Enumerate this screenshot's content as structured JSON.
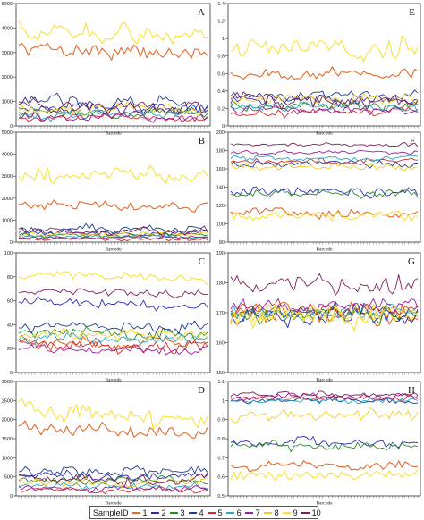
{
  "chart_data": [
    {
      "type": "line",
      "panel_label": "A",
      "xlabel": "Barcode",
      "ylim": [
        0,
        5000
      ],
      "yticks": [
        0,
        1000,
        2000,
        3000,
        4000,
        5000
      ],
      "series": [
        {
          "name": "1",
          "mean": 2900,
          "amp": 400
        },
        {
          "name": "2",
          "mean": 700,
          "amp": 300
        },
        {
          "name": "3",
          "mean": 550,
          "amp": 250
        },
        {
          "name": "4",
          "mean": 900,
          "amp": 400
        },
        {
          "name": "5",
          "mean": 350,
          "amp": 200
        },
        {
          "name": "6",
          "mean": 500,
          "amp": 250
        },
        {
          "name": "7",
          "mean": 400,
          "amp": 250
        },
        {
          "name": "8",
          "mean": 700,
          "amp": 300
        },
        {
          "name": "9",
          "mean": 3600,
          "amp": 500
        },
        {
          "name": "10",
          "mean": 800,
          "amp": 350
        }
      ]
    },
    {
      "type": "line",
      "panel_label": "E",
      "xlabel": "Barcode",
      "ylim": [
        0,
        1.4
      ],
      "yticks": [
        0,
        0.2,
        0.4,
        0.6,
        0.8,
        1.0,
        1.2,
        1.4
      ],
      "series": [
        {
          "name": "1",
          "mean": 0.6,
          "amp": 0.08
        },
        {
          "name": "2",
          "mean": 0.3,
          "amp": 0.08
        },
        {
          "name": "3",
          "mean": 0.22,
          "amp": 0.07
        },
        {
          "name": "4",
          "mean": 0.35,
          "amp": 0.08
        },
        {
          "name": "5",
          "mean": 0.15,
          "amp": 0.07
        },
        {
          "name": "6",
          "mean": 0.22,
          "amp": 0.07
        },
        {
          "name": "7",
          "mean": 0.18,
          "amp": 0.06
        },
        {
          "name": "8",
          "mean": 0.3,
          "amp": 0.08
        },
        {
          "name": "9",
          "mean": 0.9,
          "amp": 0.15
        },
        {
          "name": "10",
          "mean": 0.3,
          "amp": 0.1
        }
      ]
    },
    {
      "type": "line",
      "panel_label": "B",
      "xlabel": "Barcode",
      "ylim": [
        0,
        5000
      ],
      "yticks": [
        0,
        1000,
        2000,
        3000,
        4000,
        5000
      ],
      "series": [
        {
          "name": "1",
          "mean": 1700,
          "amp": 300
        },
        {
          "name": "2",
          "mean": 450,
          "amp": 200
        },
        {
          "name": "3",
          "mean": 300,
          "amp": 150
        },
        {
          "name": "4",
          "mean": 600,
          "amp": 250
        },
        {
          "name": "5",
          "mean": 150,
          "amp": 100
        },
        {
          "name": "6",
          "mean": 250,
          "amp": 120
        },
        {
          "name": "7",
          "mean": 200,
          "amp": 100
        },
        {
          "name": "8",
          "mean": 350,
          "amp": 150
        },
        {
          "name": "9",
          "mean": 2800,
          "amp": 450
        },
        {
          "name": "10",
          "mean": 500,
          "amp": 200
        }
      ]
    },
    {
      "type": "line",
      "panel_label": "F",
      "xlabel": "Barcode",
      "ylim": [
        80,
        200
      ],
      "yticks": [
        80,
        100,
        120,
        140,
        160,
        180,
        200
      ],
      "series": [
        {
          "name": "1",
          "mean": 112,
          "amp": 6
        },
        {
          "name": "2",
          "mean": 135,
          "amp": 7
        },
        {
          "name": "3",
          "mean": 132,
          "amp": 6
        },
        {
          "name": "4",
          "mean": 165,
          "amp": 5
        },
        {
          "name": "5",
          "mean": 168,
          "amp": 4
        },
        {
          "name": "6",
          "mean": 172,
          "amp": 4
        },
        {
          "name": "7",
          "mean": 178,
          "amp": 3
        },
        {
          "name": "8",
          "mean": 162,
          "amp": 6
        },
        {
          "name": "9",
          "mean": 108,
          "amp": 7
        },
        {
          "name": "10",
          "mean": 186,
          "amp": 3
        }
      ]
    },
    {
      "type": "line",
      "panel_label": "C",
      "xlabel": "Barcode",
      "ylim": [
        0,
        100
      ],
      "yticks": [
        0,
        20,
        40,
        60,
        80,
        100
      ],
      "series": [
        {
          "name": "1",
          "mean": 25,
          "amp": 7
        },
        {
          "name": "2",
          "mean": 55,
          "amp": 5
        },
        {
          "name": "3",
          "mean": 33,
          "amp": 6
        },
        {
          "name": "4",
          "mean": 38,
          "amp": 6
        },
        {
          "name": "5",
          "mean": 22,
          "amp": 7
        },
        {
          "name": "6",
          "mean": 28,
          "amp": 7
        },
        {
          "name": "7",
          "mean": 20,
          "amp": 6
        },
        {
          "name": "8",
          "mean": 32,
          "amp": 6
        },
        {
          "name": "9",
          "mean": 78,
          "amp": 5
        },
        {
          "name": "10",
          "mean": 65,
          "amp": 4
        }
      ]
    },
    {
      "type": "line",
      "panel_label": "G",
      "xlabel": "Barcode",
      "ylim": [
        150,
        190
      ],
      "yticks": [
        150,
        160,
        170,
        180,
        190
      ],
      "series": [
        {
          "name": "1",
          "mean": 170,
          "amp": 4
        },
        {
          "name": "2",
          "mean": 169,
          "amp": 4
        },
        {
          "name": "3",
          "mean": 169,
          "amp": 4
        },
        {
          "name": "4",
          "mean": 170,
          "amp": 4
        },
        {
          "name": "5",
          "mean": 171,
          "amp": 3
        },
        {
          "name": "6",
          "mean": 170,
          "amp": 3
        },
        {
          "name": "7",
          "mean": 172,
          "amp": 3
        },
        {
          "name": "8",
          "mean": 170,
          "amp": 4
        },
        {
          "name": "9",
          "mean": 168,
          "amp": 5
        },
        {
          "name": "10",
          "mean": 180,
          "amp": 4
        }
      ]
    },
    {
      "type": "line",
      "panel_label": "D",
      "xlabel": "Barcode",
      "ylim": [
        0,
        3000
      ],
      "yticks": [
        0,
        500,
        1000,
        1500,
        2000,
        2500,
        3000
      ],
      "series": [
        {
          "name": "1",
          "mean": 1600,
          "amp": 250
        },
        {
          "name": "2",
          "mean": 550,
          "amp": 150
        },
        {
          "name": "3",
          "mean": 400,
          "amp": 150
        },
        {
          "name": "4",
          "mean": 650,
          "amp": 200
        },
        {
          "name": "5",
          "mean": 150,
          "amp": 100
        },
        {
          "name": "6",
          "mean": 250,
          "amp": 120
        },
        {
          "name": "7",
          "mean": 200,
          "amp": 100
        },
        {
          "name": "8",
          "mean": 350,
          "amp": 150
        },
        {
          "name": "9",
          "mean": 2000,
          "amp": 350
        },
        {
          "name": "10",
          "mean": 450,
          "amp": 200
        }
      ]
    },
    {
      "type": "line",
      "panel_label": "H",
      "xlabel": "Barcode",
      "ylim": [
        0.5,
        1.1
      ],
      "yticks": [
        0.5,
        0.6,
        0.7,
        0.8,
        0.9,
        1.0,
        1.1
      ],
      "series": [
        {
          "name": "1",
          "mean": 0.66,
          "amp": 0.03
        },
        {
          "name": "2",
          "mean": 0.78,
          "amp": 0.03
        },
        {
          "name": "3",
          "mean": 0.76,
          "amp": 0.03
        },
        {
          "name": "4",
          "mean": 1.0,
          "amp": 0.02
        },
        {
          "name": "5",
          "mean": 1.01,
          "amp": 0.02
        },
        {
          "name": "6",
          "mean": 1.0,
          "amp": 0.02
        },
        {
          "name": "7",
          "mean": 1.02,
          "amp": 0.02
        },
        {
          "name": "8",
          "mean": 0.92,
          "amp": 0.04
        },
        {
          "name": "9",
          "mean": 0.6,
          "amp": 0.04
        },
        {
          "name": "10",
          "mean": 1.03,
          "amp": 0.02
        }
      ]
    }
  ],
  "legend": {
    "title": "SampleID",
    "entries": [
      {
        "label": "1",
        "color": "#e06a2a"
      },
      {
        "label": "2",
        "color": "#2b2bb5"
      },
      {
        "label": "3",
        "color": "#2a8a2a"
      },
      {
        "label": "4",
        "color": "#1f3a8f"
      },
      {
        "label": "5",
        "color": "#d12a2a"
      },
      {
        "label": "6",
        "color": "#23a7c9"
      },
      {
        "label": "7",
        "color": "#9b1d9b"
      },
      {
        "label": "8",
        "color": "#f0d020"
      },
      {
        "label": "9",
        "color": "#f7e23a"
      },
      {
        "label": "10",
        "color": "#7a1f5a"
      }
    ]
  }
}
